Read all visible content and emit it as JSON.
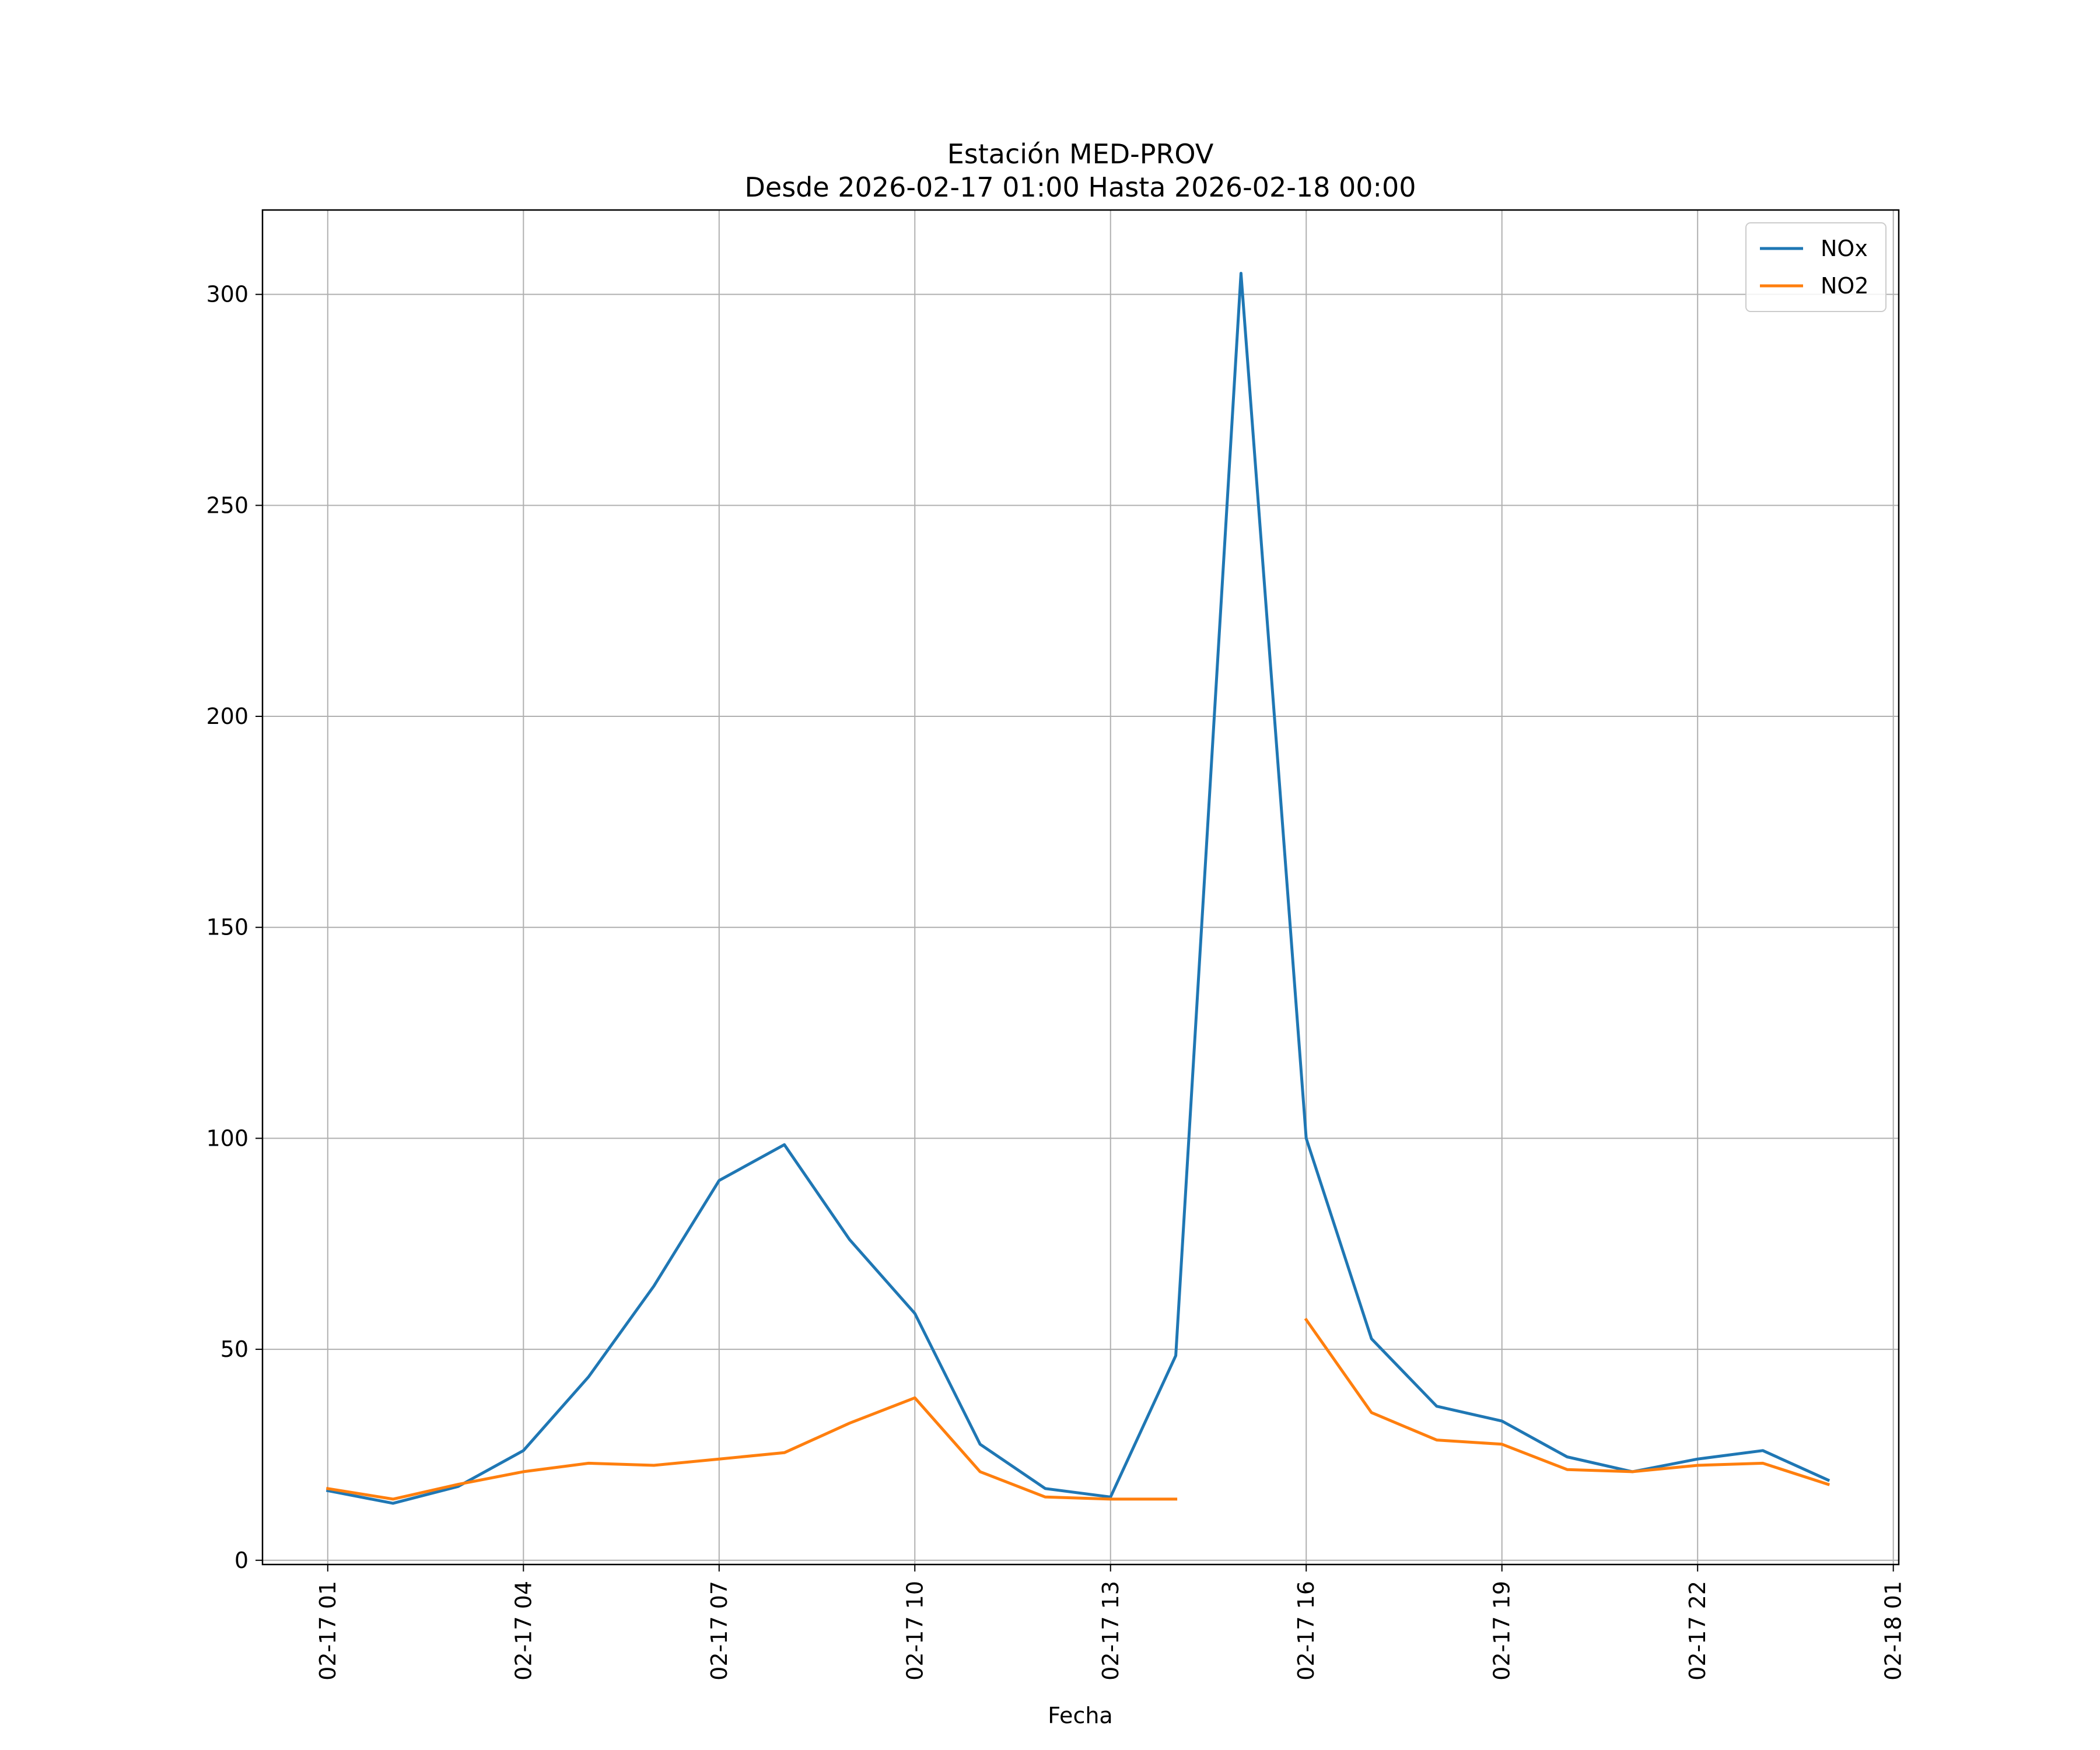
{
  "chart_data": {
    "type": "line",
    "title": "Estación MED-PROV",
    "subtitle": "Desde 2026-02-17 01:00 Hasta 2026-02-18 00:00",
    "xlabel": "Fecha",
    "ylabel": "",
    "x": [
      "02-17 01",
      "02-17 02",
      "02-17 03",
      "02-17 04",
      "02-17 05",
      "02-17 06",
      "02-17 07",
      "02-17 08",
      "02-17 09",
      "02-17 10",
      "02-17 11",
      "02-17 12",
      "02-17 13",
      "02-17 14",
      "02-17 15",
      "02-17 16",
      "02-17 17",
      "02-17 18",
      "02-17 19",
      "02-17 20",
      "02-17 21",
      "02-17 22",
      "02-17 23",
      "02-18 00"
    ],
    "x_ticks": [
      "02-17 01",
      "02-17 04",
      "02-17 07",
      "02-17 10",
      "02-17 13",
      "02-17 16",
      "02-17 19",
      "02-17 22",
      "02-18 01"
    ],
    "xlim": [
      "02-17 00:00",
      "02-18 01:05"
    ],
    "ylim": [
      -1,
      320
    ],
    "y_ticks": [
      0,
      50,
      100,
      150,
      200,
      250,
      300
    ],
    "grid": true,
    "legend_position": "top-right",
    "series": [
      {
        "name": "NOx",
        "color": "#1f77b4",
        "values": [
          16.5,
          13.5,
          17.5,
          26,
          43.5,
          65,
          90,
          98.5,
          76,
          58.5,
          27.5,
          17,
          15,
          48.5,
          305,
          100,
          52.5,
          36.5,
          33,
          24.5,
          21,
          24,
          26,
          19
        ]
      },
      {
        "name": "NO2",
        "color": "#ff7f0e",
        "values": [
          17,
          14.5,
          18,
          21,
          23,
          22.5,
          24,
          25.5,
          32.5,
          38.5,
          21,
          15,
          14.5,
          14.5,
          null,
          57,
          35,
          28.5,
          27.5,
          21.5,
          21,
          22.5,
          23,
          18
        ]
      }
    ]
  }
}
